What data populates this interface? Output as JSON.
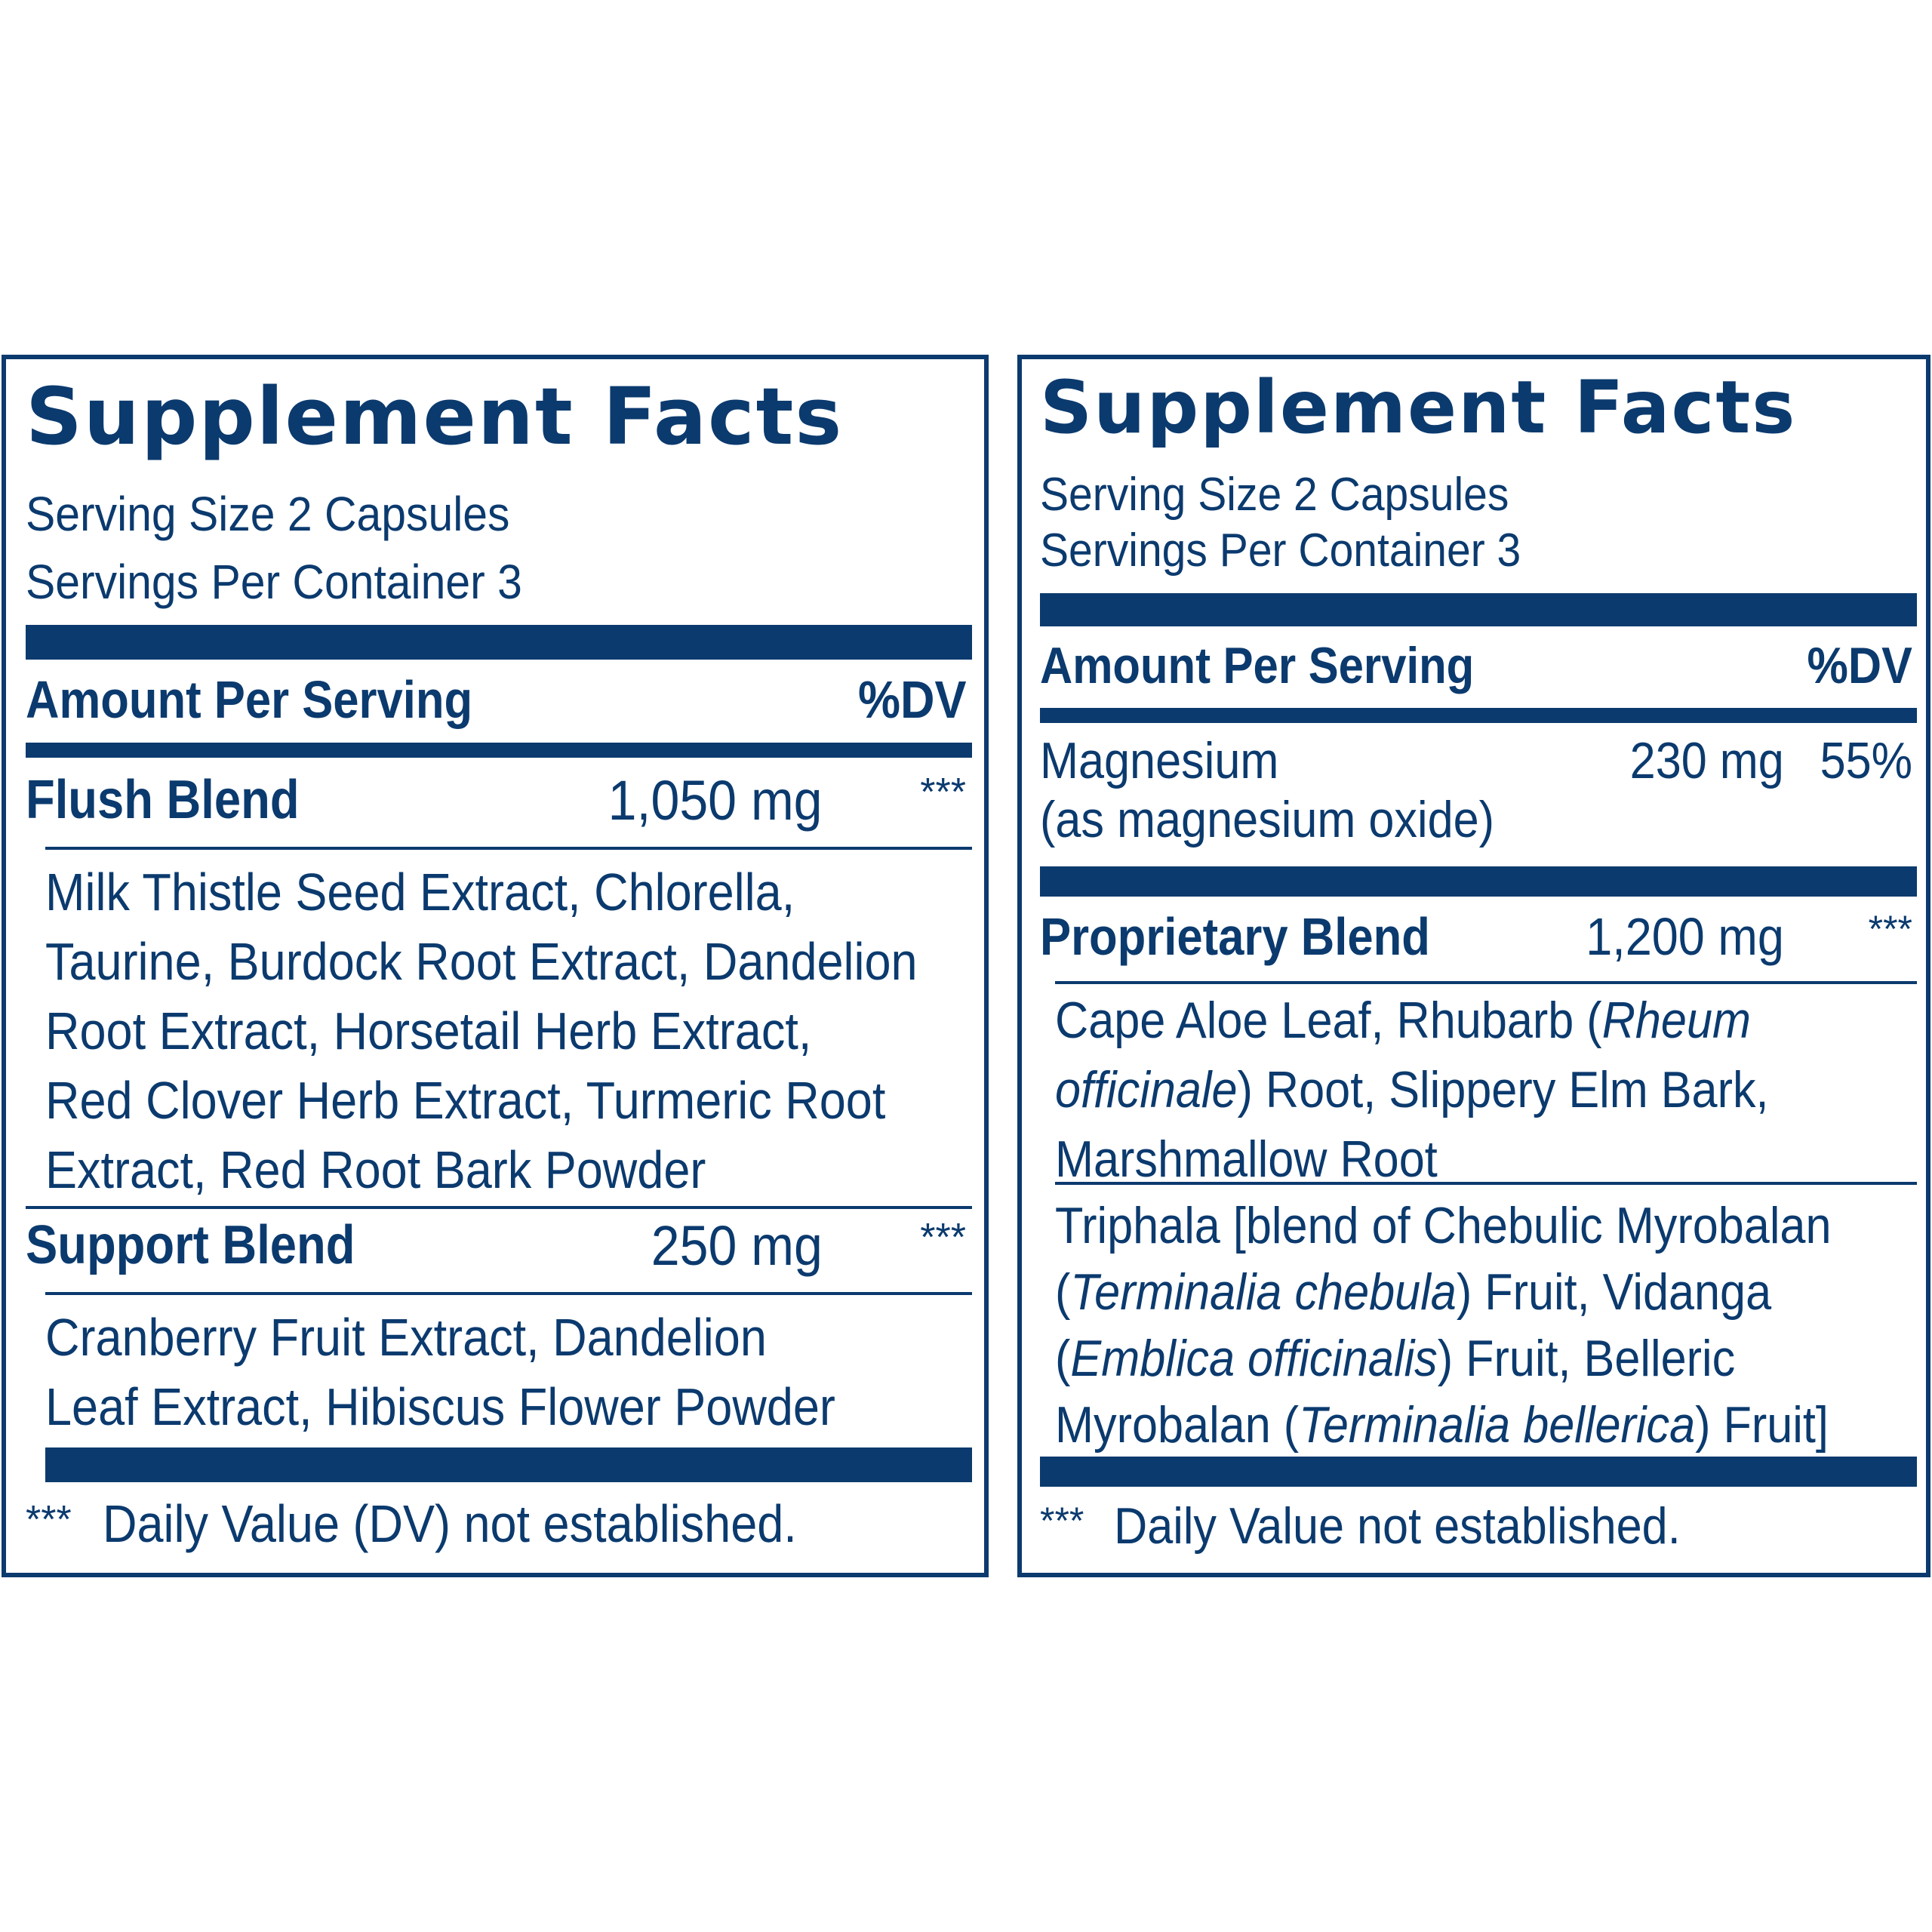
{
  "left_panel": {
    "title": "Supplement Facts",
    "serving_size": "Serving Size 2 Capsules",
    "servings_per_container": "Servings Per Container 3",
    "amount_header": "Amount Per Serving",
    "dv_header": "%DV",
    "flush_blend": {
      "name": "Flush Blend",
      "amount": "1,050 mg",
      "dv": "***",
      "ingredient_lines": [
        "Milk Thistle Seed Extract, Chlorella,",
        "Taurine, Burdock Root Extract, Dandelion",
        "Root Extract, Horsetail Herb Extract,",
        "Red Clover Herb Extract, Turmeric Root",
        "Extract, Red Root Bark Powder"
      ]
    },
    "support_blend": {
      "name": "Support Blend",
      "amount": "250 mg",
      "dv": "***",
      "ingredient_lines": [
        "Cranberry Fruit Extract, Dandelion",
        "Leaf Extract, Hibiscus Flower Powder"
      ]
    },
    "footnote_marker": "***",
    "footnote_text": "Daily Value (DV) not established."
  },
  "right_panel": {
    "title": "Supplement Facts",
    "serving_size": "Serving Size 2 Capsules",
    "servings_per_container": "Servings Per Container 3",
    "amount_header": "Amount Per Serving",
    "dv_header": "%DV",
    "magnesium": {
      "name_line1": "Magnesium",
      "name_line2": "(as magnesium oxide)",
      "amount": "230 mg",
      "dv": "55%"
    },
    "proprietary_blend": {
      "name": "Proprietary Blend",
      "amount": "1,200 mg",
      "dv": "***",
      "ingredients_1": {
        "l1_a": "Cape Aloe Leaf, Rhubarb (",
        "l1_it": "Rheum",
        "l2_it": "officinale",
        "l2_b": ") Root, Slippery Elm Bark,",
        "l3": "Marshmallow Root"
      },
      "ingredients_2": {
        "l1": "Triphala [blend of Chebulic Myrobalan",
        "l2_a": "(",
        "l2_it": "Terminalia chebula",
        "l2_b": ") Fruit, Vidanga",
        "l3_a": "(",
        "l3_it": "Emblica officinalis",
        "l3_b": ") Fruit, Belleric",
        "l4_a": "Myrobalan (",
        "l4_it": "Terminalia bellerica",
        "l4_b": ") Fruit]"
      }
    },
    "footnote_marker": "***",
    "footnote_text": "Daily Value not established."
  },
  "colors": {
    "brand_blue": "#0b3a6e",
    "background": "#ffffff"
  }
}
